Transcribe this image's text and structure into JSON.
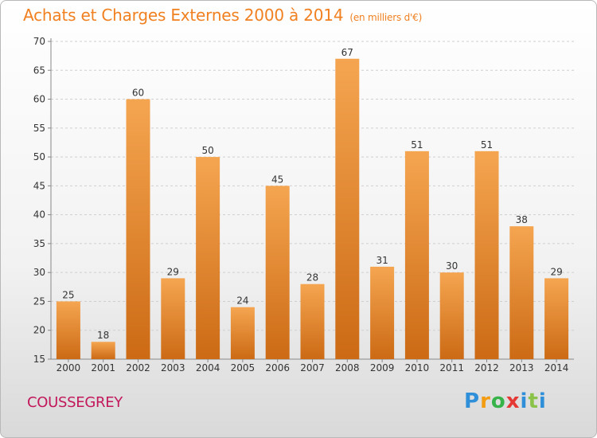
{
  "header": {
    "title": "Achats et Charges Externes 2000 à 2014",
    "subtitle": "(en milliers d'€)"
  },
  "footer": {
    "commune": "COUSSEGREY",
    "logo": {
      "p": "P",
      "r": "r",
      "o": "o",
      "x": "x",
      "i": "i",
      "t": "t",
      "i2": "i"
    }
  },
  "colors": {
    "bar_light": "#f5a550",
    "bar_dark": "#cc6a15",
    "title": "#f08020",
    "commune": "#c2185b"
  },
  "chart_data": {
    "type": "bar",
    "title": "Achats et Charges Externes 2000 à 2014",
    "subtitle": "(en milliers d'€)",
    "xlabel": "",
    "ylabel": "",
    "ylim": [
      15,
      70
    ],
    "yticks": [
      15,
      20,
      25,
      30,
      35,
      40,
      45,
      50,
      55,
      60,
      65,
      70
    ],
    "grid": true,
    "categories": [
      "2000",
      "2001",
      "2002",
      "2003",
      "2004",
      "2005",
      "2006",
      "2007",
      "2008",
      "2009",
      "2010",
      "2011",
      "2012",
      "2013",
      "2014"
    ],
    "values": [
      25,
      18,
      60,
      29,
      50,
      24,
      45,
      28,
      67,
      31,
      51,
      30,
      51,
      38,
      29
    ]
  }
}
